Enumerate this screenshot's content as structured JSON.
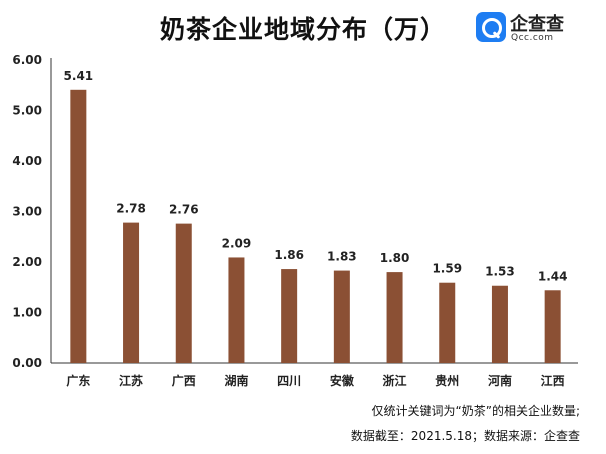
{
  "chart_data": {
    "type": "bar",
    "title": "奶茶企业地域分布（万）",
    "categories": [
      "广东",
      "江苏",
      "广西",
      "湖南",
      "四川",
      "安徽",
      "浙江",
      "贵州",
      "河南",
      "江西"
    ],
    "values": [
      5.41,
      2.78,
      2.76,
      2.09,
      1.86,
      1.83,
      1.8,
      1.59,
      1.53,
      1.44
    ],
    "value_labels": [
      "5.41",
      "2.78",
      "2.76",
      "2.09",
      "1.86",
      "1.83",
      "1.80",
      "1.59",
      "1.53",
      "1.44"
    ],
    "y_ticks": [
      "0.00",
      "1.00",
      "2.00",
      "3.00",
      "4.00",
      "5.00",
      "6.00"
    ],
    "ylim": [
      0,
      6
    ],
    "xlabel": "",
    "ylabel": "",
    "grid": false,
    "bar_color": "#8b5034"
  },
  "logo": {
    "name": "企查查",
    "domain": "Qcc.com",
    "icon": "qcc-search-icon",
    "color": "#1e7df2"
  },
  "footnotes": {
    "line1": "仅统计关键词为“奶茶”的相关企业数量;",
    "line2": "数据截至：2021.5.18；数据来源：企查查"
  }
}
